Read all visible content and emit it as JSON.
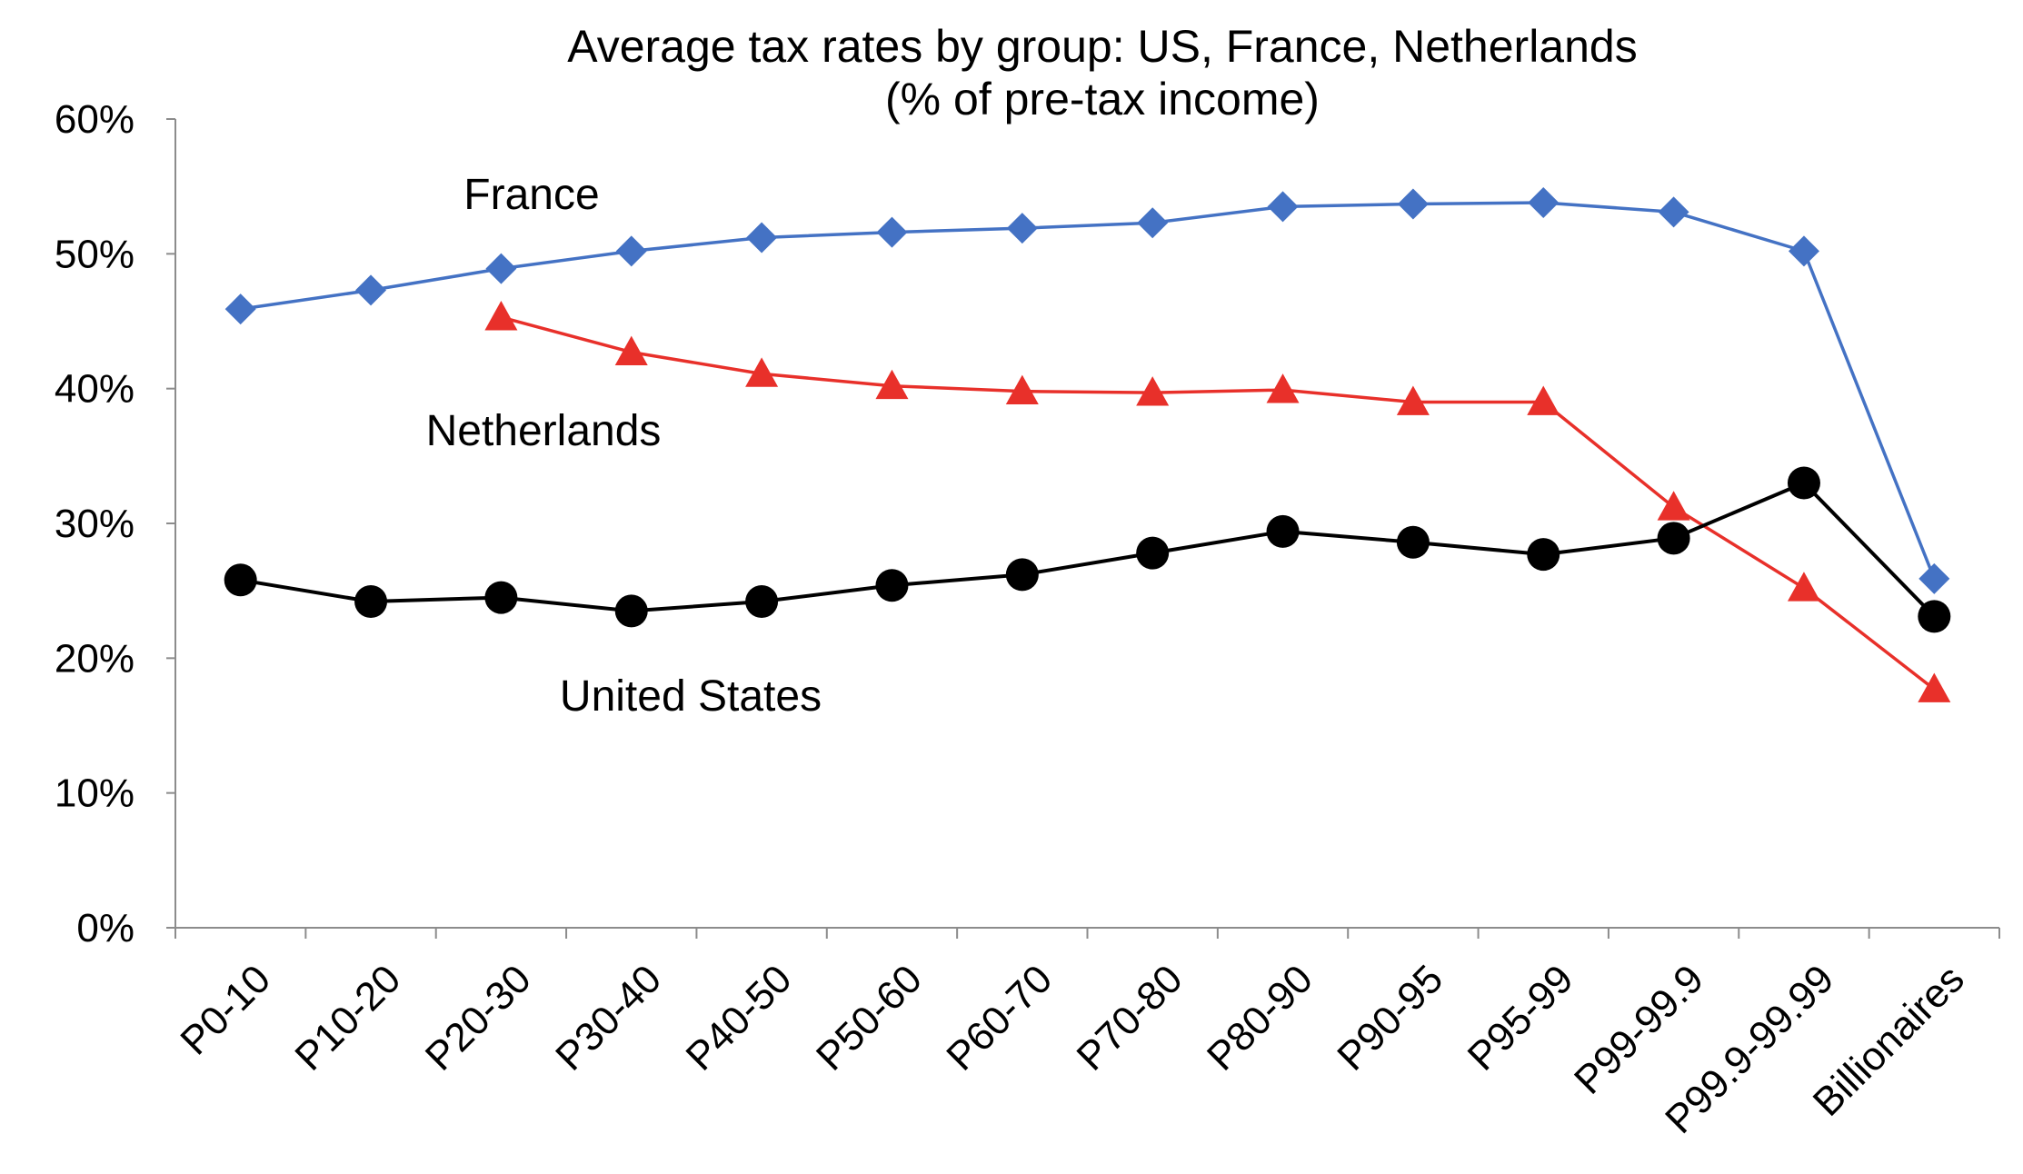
{
  "chart_data": {
    "type": "line",
    "title": "Average tax rates by group: US, France, Netherlands",
    "subtitle": "(% of pre-tax income)",
    "xlabel": "",
    "ylabel": "",
    "ylim": [
      0,
      60
    ],
    "yticks": [
      "0%",
      "10%",
      "20%",
      "30%",
      "40%",
      "50%",
      "60%"
    ],
    "grid": false,
    "legend": "none",
    "categories": [
      "P0-10",
      "P10-20",
      "P20-30",
      "P30-40",
      "P40-50",
      "P50-60",
      "P60-70",
      "P70-80",
      "P80-90",
      "P90-95",
      "P95-99",
      "P99-99.9",
      "P99.9-99.99",
      "Billionaires"
    ],
    "series": [
      {
        "name": "France",
        "color": "#4472C4",
        "marker": "diamond",
        "values": [
          45.9,
          47.3,
          48.9,
          50.2,
          51.2,
          51.6,
          51.9,
          52.3,
          53.5,
          53.7,
          53.8,
          53.1,
          50.2,
          25.9
        ]
      },
      {
        "name": "Netherlands",
        "color": "#E8302A",
        "marker": "triangle",
        "values": [
          null,
          null,
          45.3,
          42.7,
          41.1,
          40.2,
          39.8,
          39.7,
          39.9,
          39.0,
          39.0,
          31.2,
          25.2,
          17.7
        ]
      },
      {
        "name": "United States",
        "color": "#000000",
        "marker": "circle",
        "values": [
          25.8,
          24.2,
          24.5,
          23.5,
          24.2,
          25.4,
          26.2,
          27.8,
          29.4,
          28.6,
          27.7,
          28.9,
          33.0,
          23.1
        ]
      }
    ]
  }
}
